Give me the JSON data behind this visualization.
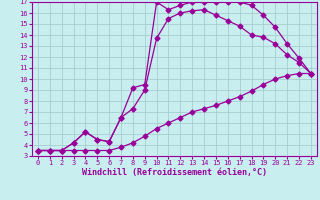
{
  "xlabel": "Windchill (Refroidissement éolien,°C)",
  "xlim": [
    -0.5,
    23.5
  ],
  "ylim": [
    3,
    17
  ],
  "xticks": [
    0,
    1,
    2,
    3,
    4,
    5,
    6,
    7,
    8,
    9,
    10,
    11,
    12,
    13,
    14,
    15,
    16,
    17,
    18,
    19,
    20,
    21,
    22,
    23
  ],
  "yticks": [
    3,
    4,
    5,
    6,
    7,
    8,
    9,
    10,
    11,
    12,
    13,
    14,
    15,
    16,
    17
  ],
  "background_color": "#c8eef0",
  "grid_color": "#a0c8c8",
  "line_color": "#990099",
  "line1_x": [
    0,
    1,
    2,
    3,
    4,
    5,
    6,
    7,
    8,
    9,
    10,
    11,
    12,
    13,
    14,
    15,
    16,
    17,
    18,
    19,
    20,
    21,
    22,
    23
  ],
  "line1_y": [
    3.5,
    3.5,
    3.5,
    4.2,
    5.2,
    4.5,
    4.3,
    6.5,
    9.2,
    9.5,
    17.0,
    16.3,
    16.7,
    17.0,
    17.0,
    17.0,
    17.0,
    17.0,
    16.7,
    15.8,
    14.7,
    13.2,
    11.9,
    10.5
  ],
  "line2_x": [
    0,
    1,
    2,
    3,
    4,
    5,
    6,
    7,
    8,
    9,
    10,
    11,
    12,
    13,
    14,
    15,
    16,
    17,
    18,
    19,
    20,
    21,
    22,
    23
  ],
  "line2_y": [
    3.5,
    3.5,
    3.5,
    4.2,
    5.2,
    4.5,
    4.3,
    6.5,
    7.3,
    9.0,
    13.7,
    15.5,
    16.0,
    16.2,
    16.3,
    15.8,
    15.3,
    14.8,
    14.0,
    13.8,
    13.2,
    12.2,
    11.5,
    10.5
  ],
  "line3_x": [
    0,
    1,
    2,
    3,
    4,
    5,
    6,
    7,
    8,
    9,
    10,
    11,
    12,
    13,
    14,
    15,
    16,
    17,
    18,
    19,
    20,
    21,
    22,
    23
  ],
  "line3_y": [
    3.5,
    3.5,
    3.5,
    3.5,
    3.5,
    3.5,
    3.5,
    3.8,
    4.2,
    4.8,
    5.5,
    6.0,
    6.5,
    7.0,
    7.3,
    7.6,
    8.0,
    8.4,
    8.9,
    9.5,
    10.0,
    10.3,
    10.5,
    10.5
  ],
  "marker": "D",
  "markersize": 2.5,
  "linewidth": 0.9,
  "tick_fontsize": 5.0,
  "label_fontsize": 6.0
}
